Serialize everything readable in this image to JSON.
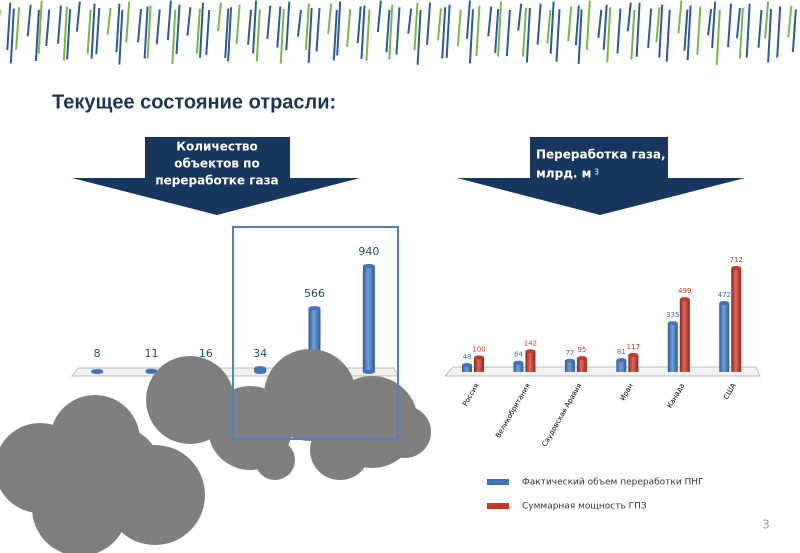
{
  "slide": {
    "title": "Текущее состояние отрасли:",
    "page": "3"
  },
  "callouts": [
    {
      "lines": [
        "Количество",
        "объектов по",
        "переработке газа"
      ]
    },
    {
      "lines": [
        "Переработка газа,",
        "млрд. м"
      ],
      "superscript": "3"
    }
  ],
  "chart_data": [
    {
      "type": "bar",
      "categories": [
        null,
        null,
        null,
        null,
        null,
        null
      ],
      "values": [
        8,
        11,
        16,
        34,
        566,
        940
      ],
      "color": "#3f75b8"
    },
    {
      "type": "bar",
      "categories": [
        "Россия",
        "Великобритания",
        "Саудовская Аравия",
        "Иран",
        "Канада",
        "США"
      ],
      "series": [
        {
          "name": "Фактический объем переработки ПНГ",
          "color": "#3f75b8",
          "values": [
            48,
            64,
            77,
            81,
            335,
            472
          ]
        },
        {
          "name": "Суммарная мощность ГПЗ",
          "color": "#c0392b",
          "values": [
            100,
            142,
            95,
            117,
            499,
            712
          ]
        }
      ],
      "legend": "bottom"
    }
  ]
}
